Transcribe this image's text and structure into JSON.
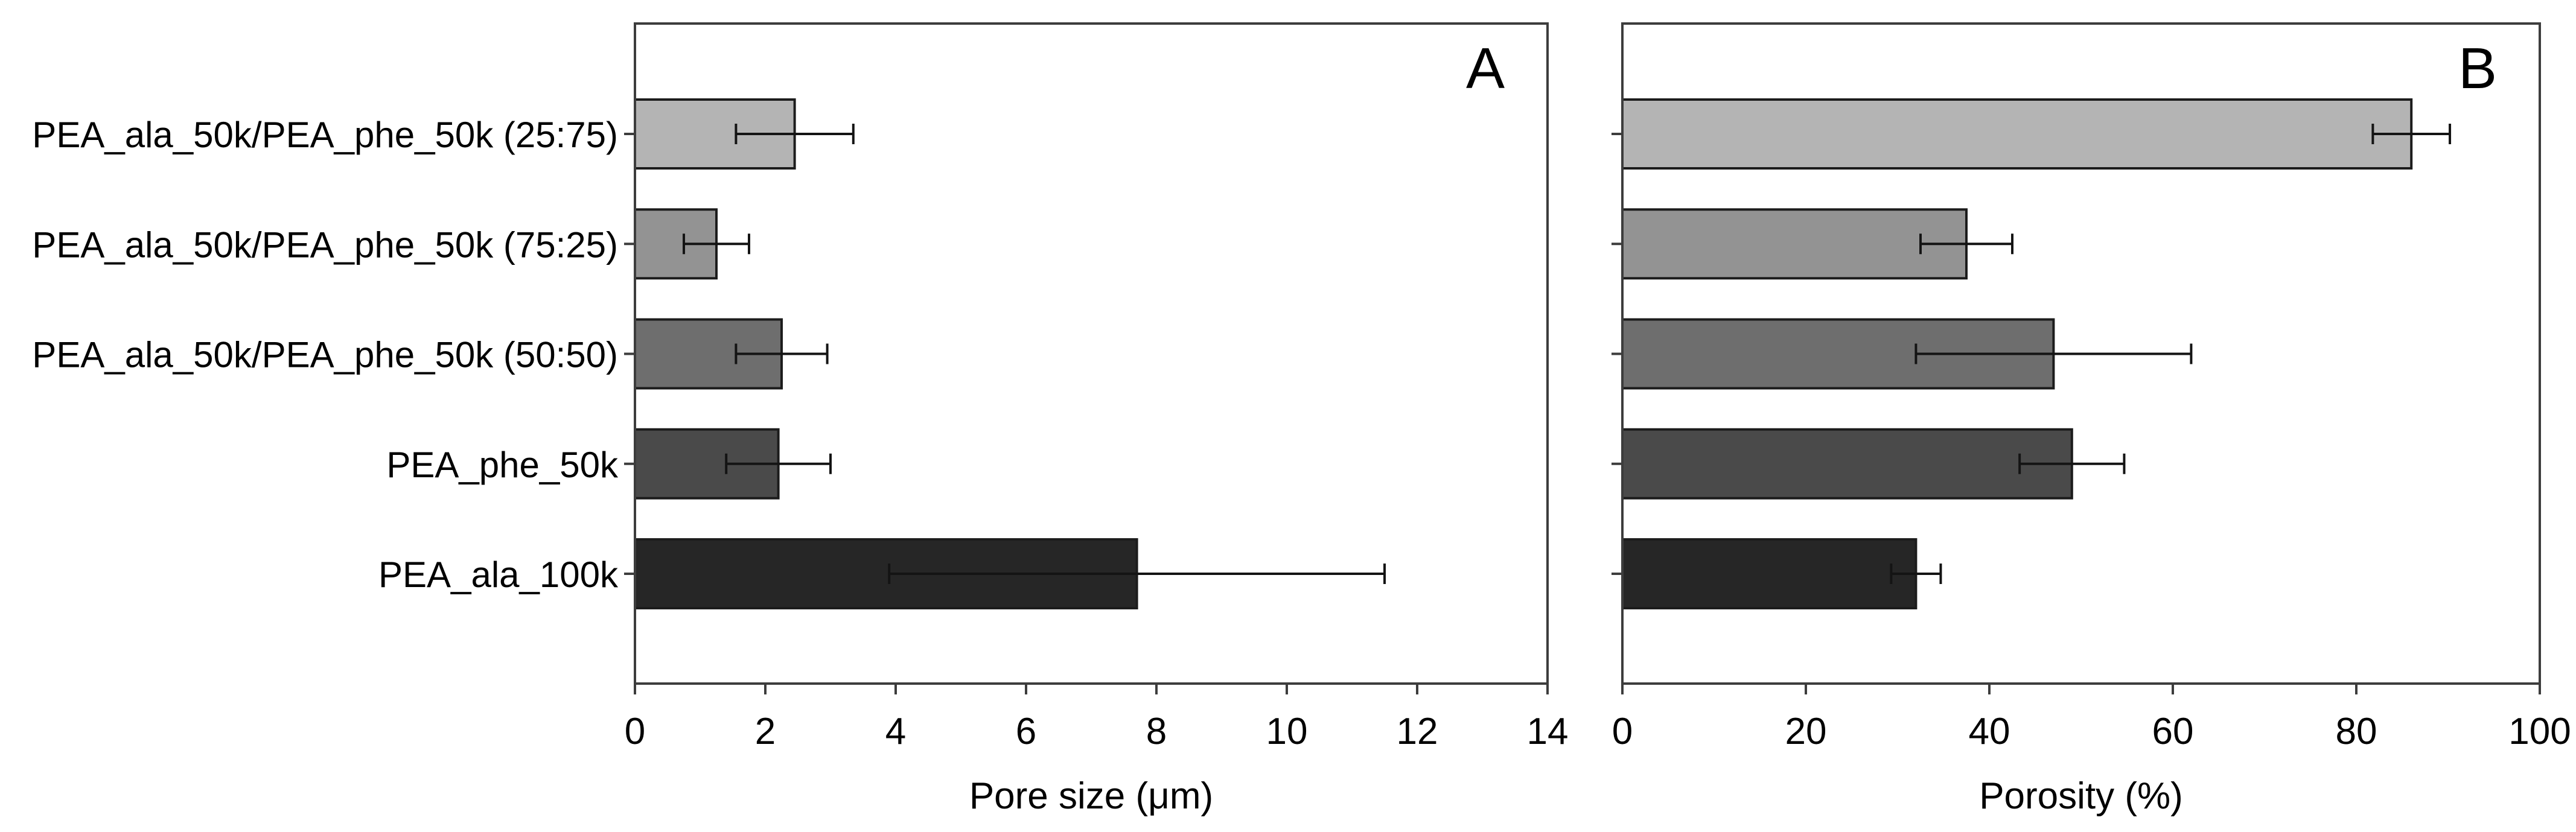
{
  "figure": {
    "background": "#ffffff",
    "text_color": "#000000",
    "frame_color": "#3d3d3d",
    "bar_outline_color": "#1c1c1c",
    "error_bar_color": "#141414"
  },
  "chart_data": [
    {
      "type": "bar",
      "orientation": "horizontal",
      "panel_label": "A",
      "title": "",
      "xlabel": "Pore size (μm)",
      "ylabel": "",
      "categories": [
        "PEA_ala_50k/PEA_phe_50k (25:75)",
        "PEA_ala_50k/PEA_phe_50k (75:25)",
        "PEA_ala_50k/PEA_phe_50k (50:50)",
        "PEA_phe_50k",
        "PEA_ala_100k"
      ],
      "values": [
        2.45,
        1.25,
        2.25,
        2.2,
        7.7
      ],
      "errors": [
        0.9,
        0.5,
        0.7,
        0.8,
        3.8
      ],
      "xlim": [
        0,
        14
      ],
      "xticks": [
        0,
        2,
        4,
        6,
        8,
        10,
        12,
        14
      ],
      "bar_colors": [
        "#b4b4b4",
        "#939393",
        "#6e6e6e",
        "#4a4a4a",
        "#262626"
      ],
      "grid": false,
      "legend": "none",
      "show_category_labels": true
    },
    {
      "type": "bar",
      "orientation": "horizontal",
      "panel_label": "B",
      "title": "",
      "xlabel": "Porosity (%)",
      "ylabel": "",
      "categories": [
        "PEA_ala_50k/PEA_phe_50k (25:75)",
        "PEA_ala_50k/PEA_phe_50k (75:25)",
        "PEA_ala_50k/PEA_phe_50k (50:50)",
        "PEA_phe_50k",
        "PEA_ala_100k"
      ],
      "values": [
        86,
        37.5,
        47,
        49,
        32
      ],
      "errors": [
        4.2,
        5,
        15,
        5.7,
        2.7
      ],
      "xlim": [
        0,
        100
      ],
      "xticks": [
        0,
        20,
        40,
        60,
        80,
        100
      ],
      "bar_colors": [
        "#b4b4b4",
        "#939393",
        "#6e6e6e",
        "#4a4a4a",
        "#262626"
      ],
      "grid": false,
      "legend": "none",
      "show_category_labels": false
    }
  ]
}
